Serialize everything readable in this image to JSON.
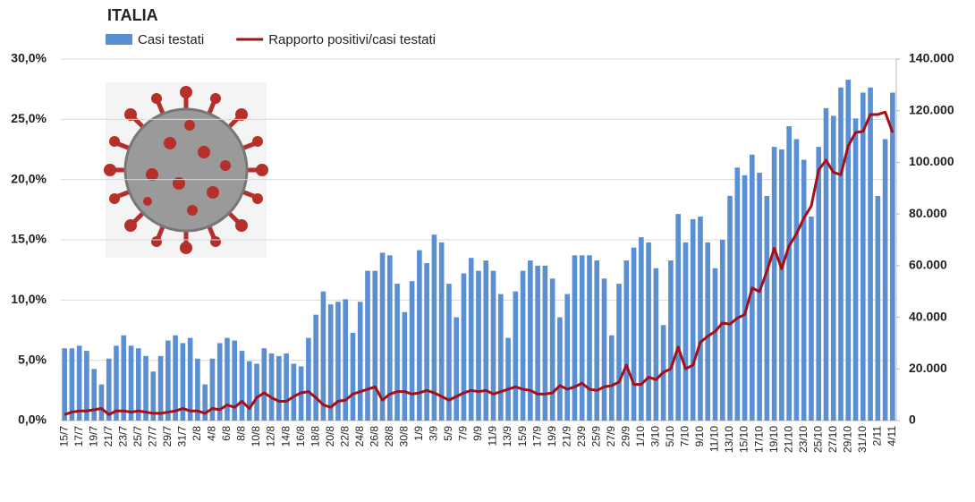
{
  "chart_data": {
    "type": "bar",
    "title": "ITALIA",
    "categories": [
      "15/7",
      null,
      "17/7",
      null,
      "19/7",
      null,
      "21/7",
      null,
      "23/7",
      null,
      "25/7",
      null,
      "27/7",
      null,
      "29/7",
      null,
      "31/7",
      null,
      "2/8",
      null,
      "4/8",
      null,
      "6/8",
      null,
      "8/8",
      null,
      "10/8",
      null,
      "12/8",
      null,
      "14/8",
      null,
      "16/8",
      null,
      "18/8",
      null,
      "20/8",
      null,
      "22/8",
      null,
      "24/8",
      null,
      "26/8",
      null,
      "28/8",
      null,
      "30/8",
      null,
      "1/9",
      null,
      "3/9",
      null,
      "5/9",
      null,
      "7/9",
      null,
      "9/9",
      null,
      "11/9",
      null,
      "13/9",
      null,
      "15/9",
      null,
      "17/9",
      null,
      "19/9",
      null,
      "21/9",
      null,
      "23/9",
      null,
      "25/9",
      null,
      "27/9",
      null,
      "29/9",
      null,
      "1/10",
      null,
      "3/10",
      null,
      "5/10",
      null,
      "7/10",
      null,
      "9/10",
      null,
      "11/10",
      null,
      "13/10",
      null,
      "15/10",
      null,
      "17/10",
      null,
      "19/10",
      null,
      "21/10",
      null,
      "23/10",
      null,
      "25/10",
      null,
      "27/10",
      null,
      "29/10",
      null,
      "31/10",
      null,
      "2/11",
      null,
      "4/11"
    ],
    "series": [
      {
        "name": "Casi testati",
        "type": "bar",
        "axis": "y2",
        "color": "#5b8fd4",
        "values": [
          28000,
          28000,
          29000,
          27000,
          20000,
          14000,
          24000,
          29000,
          33000,
          29000,
          28000,
          25000,
          19000,
          25000,
          31000,
          33000,
          30000,
          32000,
          24000,
          14000,
          24000,
          30000,
          32000,
          31000,
          27000,
          23000,
          22000,
          28000,
          26000,
          25000,
          26000,
          22000,
          21000,
          32000,
          41000,
          50000,
          45000,
          46000,
          47000,
          34000,
          46000,
          58000,
          58000,
          65000,
          64000,
          53000,
          42000,
          54000,
          66000,
          61000,
          72000,
          69000,
          53000,
          40000,
          57000,
          63000,
          58000,
          62000,
          58000,
          49000,
          32000,
          50000,
          58000,
          62000,
          60000,
          60000,
          55000,
          40000,
          49000,
          64000,
          64000,
          64000,
          62000,
          55000,
          33000,
          53000,
          62000,
          67000,
          71000,
          69000,
          59000,
          37000,
          62000,
          80000,
          69000,
          78000,
          79000,
          69000,
          59000,
          70000,
          87000,
          98000,
          95000,
          103000,
          96000,
          87000,
          106000,
          105000,
          114000,
          109000,
          101000,
          79000,
          106000,
          121000,
          118000,
          129000,
          132000,
          117000,
          127000,
          129000,
          87000,
          109000,
          127000
        ]
      },
      {
        "name": "Rapporto positivi/casi testati",
        "type": "line",
        "color": "#a50f15",
        "values": [
          0.5,
          0.7,
          0.8,
          0.8,
          0.9,
          1.0,
          0.5,
          0.8,
          0.8,
          0.7,
          0.8,
          0.7,
          0.6,
          0.6,
          0.7,
          0.8,
          1.0,
          0.8,
          0.8,
          0.6,
          1.0,
          0.9,
          1.3,
          1.1,
          1.6,
          1.0,
          1.9,
          2.3,
          1.9,
          1.6,
          1.6,
          2.0,
          2.3,
          2.4,
          1.9,
          1.3,
          1.1,
          1.6,
          1.7,
          2.2,
          2.4,
          2.6,
          2.8,
          1.7,
          2.2,
          2.4,
          2.4,
          2.2,
          2.3,
          2.5,
          2.3,
          2.0,
          1.7,
          2.0,
          2.3,
          2.5,
          2.4,
          2.5,
          2.2,
          2.4,
          2.6,
          2.8,
          2.6,
          2.5,
          2.2,
          2.2,
          2.3,
          2.9,
          2.6,
          2.8,
          3.1,
          2.6,
          2.5,
          2.8,
          2.9,
          3.2,
          4.6,
          3.0,
          3.0,
          3.6,
          3.4,
          4.0,
          4.3,
          6.1,
          4.3,
          4.6,
          6.5,
          7.0,
          7.4,
          8.1,
          8.0,
          8.5,
          8.8,
          11.0,
          10.7,
          12.4,
          14.3,
          12.6,
          14.5,
          15.5,
          16.8,
          17.8,
          20.8,
          21.6,
          20.6,
          20.4,
          22.8,
          23.9,
          24.0,
          25.4,
          25.4,
          25.6,
          23.9
        ]
      }
    ],
    "ylim": [
      0,
      30
    ],
    "yticks": [
      {
        "value": 0,
        "label": "0,0%"
      },
      {
        "value": 5,
        "label": "5,0%"
      },
      {
        "value": 10,
        "label": "10,0%"
      },
      {
        "value": 15,
        "label": "15,0%"
      },
      {
        "value": 20,
        "label": "20,0%"
      },
      {
        "value": 25,
        "label": "25,0%"
      },
      {
        "value": 30,
        "label": "30,0%"
      }
    ],
    "y2lim": [
      0,
      140000
    ],
    "y2ticks": [
      {
        "value": 0,
        "label": "0"
      },
      {
        "value": 20000,
        "label": "20.000"
      },
      {
        "value": 40000,
        "label": "40.000"
      },
      {
        "value": 60000,
        "label": "60.000"
      },
      {
        "value": 80000,
        "label": "80.000"
      },
      {
        "value": 100000,
        "label": "100.000"
      },
      {
        "value": 120000,
        "label": "120.000"
      },
      {
        "value": 140000,
        "label": "140.000"
      }
    ],
    "grid": true
  }
}
